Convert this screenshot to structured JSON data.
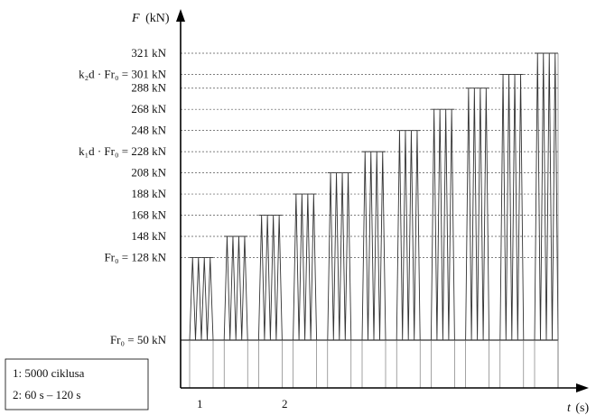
{
  "chart_data": {
    "type": "line",
    "y_axis_label": {
      "symbol": "F",
      "unit": "(kN)"
    },
    "x_axis_label": {
      "symbol": "t",
      "unit": "(s)"
    },
    "y_levels": [
      {
        "value": 50,
        "label": "Fr₀ = 50 kN"
      },
      {
        "value": 128,
        "label": "Fr₀ = 128 kN"
      },
      {
        "value": 148,
        "label": "148 kN"
      },
      {
        "value": 168,
        "label": "168 kN"
      },
      {
        "value": 188,
        "label": "188 kN"
      },
      {
        "value": 208,
        "label": "208 kN"
      },
      {
        "value": 228,
        "label": "k₁d · Fr₀ = 228 kN"
      },
      {
        "value": 248,
        "label": "248 kN"
      },
      {
        "value": 268,
        "label": "268 kN"
      },
      {
        "value": 288,
        "label": "288 kN"
      },
      {
        "value": 301,
        "label": "k₂d · Fr₀ = 301 kN"
      },
      {
        "value": 321,
        "label": "321 kN"
      }
    ],
    "series": [
      {
        "min_load": 50,
        "blocks": [
          128,
          148,
          168,
          188,
          208,
          228,
          248,
          268,
          288,
          301,
          321
        ]
      }
    ],
    "x_markers": [
      "1",
      "2"
    ],
    "ylim": [
      50,
      321
    ]
  },
  "legend": {
    "line1": "1: 5000 ciklusa",
    "line2": "2: 60 s – 120 s"
  }
}
